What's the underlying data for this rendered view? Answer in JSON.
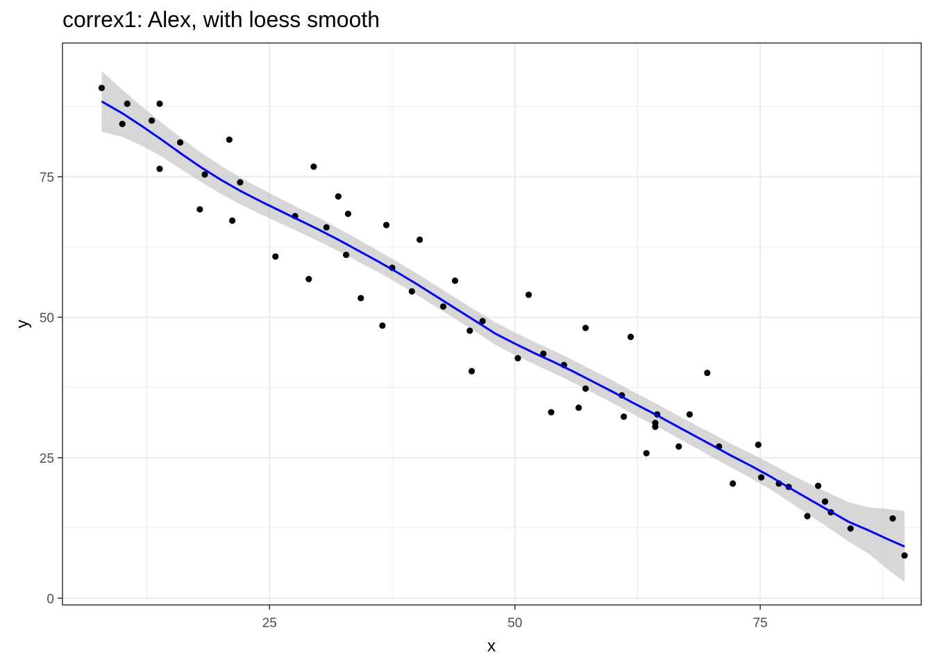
{
  "chart_data": {
    "type": "scatter",
    "title": "correx1: Alex, with loess smooth",
    "xlabel": "x",
    "ylabel": "y",
    "xlim": [
      3.9,
      91.4
    ],
    "ylim": [
      -1.2,
      98.8
    ],
    "x_ticks": [
      25,
      50,
      75
    ],
    "x_minor": [
      12.5,
      37.5,
      62.5,
      87.5
    ],
    "y_ticks": [
      0,
      25,
      50,
      75
    ],
    "y_minor": [
      12.5,
      37.5,
      62.5,
      87.5
    ],
    "grid": true,
    "colors": {
      "points": "#000000",
      "smooth_line": "#0000ff",
      "ribbon": "#bfbfbf",
      "grid": "#ebebeb",
      "panel_border": "#333333"
    },
    "points": [
      [
        7.9,
        90.8
      ],
      [
        10.0,
        84.4
      ],
      [
        10.5,
        88.0
      ],
      [
        13.0,
        85.0
      ],
      [
        13.8,
        88.0
      ],
      [
        13.8,
        76.4
      ],
      [
        15.9,
        81.1
      ],
      [
        17.9,
        69.2
      ],
      [
        18.4,
        75.4
      ],
      [
        20.9,
        81.6
      ],
      [
        21.2,
        67.2
      ],
      [
        22.0,
        74.0
      ],
      [
        25.6,
        60.8
      ],
      [
        27.6,
        68.0
      ],
      [
        29.0,
        56.8
      ],
      [
        29.5,
        76.8
      ],
      [
        30.8,
        66.0
      ],
      [
        32.0,
        71.5
      ],
      [
        32.8,
        61.1
      ],
      [
        33.0,
        68.4
      ],
      [
        34.3,
        53.4
      ],
      [
        36.5,
        48.5
      ],
      [
        36.9,
        66.4
      ],
      [
        37.5,
        58.8
      ],
      [
        39.5,
        54.6
      ],
      [
        40.3,
        63.8
      ],
      [
        42.7,
        51.9
      ],
      [
        43.9,
        56.5
      ],
      [
        45.4,
        47.6
      ],
      [
        45.6,
        40.4
      ],
      [
        46.7,
        49.3
      ],
      [
        50.3,
        42.7
      ],
      [
        51.4,
        54.0
      ],
      [
        52.9,
        43.5
      ],
      [
        53.7,
        33.1
      ],
      [
        55.0,
        41.5
      ],
      [
        56.5,
        33.9
      ],
      [
        57.2,
        37.3
      ],
      [
        57.2,
        48.1
      ],
      [
        60.9,
        36.1
      ],
      [
        61.1,
        32.3
      ],
      [
        61.8,
        46.5
      ],
      [
        63.4,
        25.8
      ],
      [
        64.3,
        30.5
      ],
      [
        64.3,
        31.2
      ],
      [
        64.5,
        32.7
      ],
      [
        66.7,
        27.0
      ],
      [
        67.8,
        32.7
      ],
      [
        69.6,
        40.1
      ],
      [
        70.8,
        27.0
      ],
      [
        72.2,
        20.4
      ],
      [
        74.8,
        27.3
      ],
      [
        75.1,
        21.5
      ],
      [
        76.9,
        20.4
      ],
      [
        77.9,
        19.8
      ],
      [
        79.8,
        14.6
      ],
      [
        80.9,
        20.0
      ],
      [
        81.6,
        17.2
      ],
      [
        82.2,
        15.3
      ],
      [
        84.2,
        12.4
      ],
      [
        88.5,
        14.2
      ],
      [
        89.7,
        7.6
      ]
    ],
    "smooth": [
      [
        7.9,
        88.4
      ],
      [
        10.0,
        86.3
      ],
      [
        12.0,
        84.0
      ],
      [
        14.0,
        81.6
      ],
      [
        16.0,
        79.1
      ],
      [
        18.0,
        76.7
      ],
      [
        20.0,
        74.5
      ],
      [
        22.0,
        72.5
      ],
      [
        24.0,
        70.7
      ],
      [
        26.0,
        69.0
      ],
      [
        28.0,
        67.3
      ],
      [
        30.0,
        65.6
      ],
      [
        32.0,
        63.8
      ],
      [
        34.0,
        61.9
      ],
      [
        36.0,
        60.0
      ],
      [
        38.0,
        58.0
      ],
      [
        40.0,
        55.9
      ],
      [
        42.0,
        53.7
      ],
      [
        44.0,
        51.5
      ],
      [
        46.0,
        49.3
      ],
      [
        48.0,
        47.1
      ],
      [
        50.0,
        45.3
      ],
      [
        52.0,
        43.6
      ],
      [
        54.0,
        42.0
      ],
      [
        56.0,
        40.3
      ],
      [
        58.0,
        38.5
      ],
      [
        60.0,
        36.7
      ],
      [
        62.0,
        34.8
      ],
      [
        64.0,
        33.0
      ],
      [
        66.0,
        31.1
      ],
      [
        68.0,
        29.2
      ],
      [
        70.0,
        27.3
      ],
      [
        72.0,
        25.4
      ],
      [
        74.0,
        23.6
      ],
      [
        76.0,
        21.7
      ],
      [
        78.0,
        19.6
      ],
      [
        80.0,
        17.6
      ],
      [
        82.0,
        15.6
      ],
      [
        84.0,
        13.6
      ],
      [
        86.0,
        12.1
      ],
      [
        88.0,
        10.5
      ],
      [
        89.7,
        9.2
      ]
    ],
    "ribbon_upper": [
      [
        7.9,
        93.8
      ],
      [
        10.0,
        90.5
      ],
      [
        12.0,
        87.5
      ],
      [
        14.0,
        84.6
      ],
      [
        16.0,
        81.9
      ],
      [
        18.0,
        79.3
      ],
      [
        20.0,
        77.0
      ],
      [
        22.0,
        74.9
      ],
      [
        24.0,
        73.0
      ],
      [
        26.0,
        71.2
      ],
      [
        28.0,
        69.4
      ],
      [
        30.0,
        67.7
      ],
      [
        32.0,
        65.8
      ],
      [
        34.0,
        63.9
      ],
      [
        36.0,
        61.9
      ],
      [
        38.0,
        59.9
      ],
      [
        40.0,
        57.8
      ],
      [
        42.0,
        55.6
      ],
      [
        44.0,
        53.4
      ],
      [
        46.0,
        51.2
      ],
      [
        48.0,
        49.1
      ],
      [
        50.0,
        47.3
      ],
      [
        52.0,
        45.6
      ],
      [
        54.0,
        44.0
      ],
      [
        56.0,
        42.3
      ],
      [
        58.0,
        40.5
      ],
      [
        60.0,
        38.7
      ],
      [
        62.0,
        36.8
      ],
      [
        64.0,
        35.0
      ],
      [
        66.0,
        33.1
      ],
      [
        68.0,
        31.2
      ],
      [
        70.0,
        29.4
      ],
      [
        72.0,
        27.5
      ],
      [
        74.0,
        25.8
      ],
      [
        76.0,
        24.0
      ],
      [
        78.0,
        22.1
      ],
      [
        80.0,
        20.4
      ],
      [
        82.0,
        18.7
      ],
      [
        84.0,
        17.1
      ],
      [
        86.0,
        16.2
      ],
      [
        88.0,
        15.9
      ],
      [
        89.7,
        15.5
      ]
    ],
    "ribbon_lower": [
      [
        7.9,
        83.0
      ],
      [
        10.0,
        82.1
      ],
      [
        12.0,
        80.5
      ],
      [
        14.0,
        78.6
      ],
      [
        16.0,
        76.3
      ],
      [
        18.0,
        74.1
      ],
      [
        20.0,
        72.0
      ],
      [
        22.0,
        70.1
      ],
      [
        24.0,
        68.4
      ],
      [
        26.0,
        66.8
      ],
      [
        28.0,
        65.2
      ],
      [
        30.0,
        63.5
      ],
      [
        32.0,
        61.8
      ],
      [
        34.0,
        59.9
      ],
      [
        36.0,
        58.1
      ],
      [
        38.0,
        56.1
      ],
      [
        40.0,
        54.0
      ],
      [
        42.0,
        51.8
      ],
      [
        44.0,
        49.6
      ],
      [
        46.0,
        47.4
      ],
      [
        48.0,
        45.1
      ],
      [
        50.0,
        43.3
      ],
      [
        52.0,
        41.6
      ],
      [
        54.0,
        40.0
      ],
      [
        56.0,
        38.3
      ],
      [
        58.0,
        36.5
      ],
      [
        60.0,
        34.7
      ],
      [
        62.0,
        32.8
      ],
      [
        64.0,
        31.0
      ],
      [
        66.0,
        29.1
      ],
      [
        68.0,
        27.2
      ],
      [
        70.0,
        25.2
      ],
      [
        72.0,
        23.3
      ],
      [
        74.0,
        21.4
      ],
      [
        76.0,
        19.4
      ],
      [
        78.0,
        17.1
      ],
      [
        80.0,
        14.8
      ],
      [
        82.0,
        12.5
      ],
      [
        84.0,
        10.1
      ],
      [
        86.0,
        8.0
      ],
      [
        88.0,
        5.1
      ],
      [
        89.7,
        2.9
      ]
    ]
  }
}
